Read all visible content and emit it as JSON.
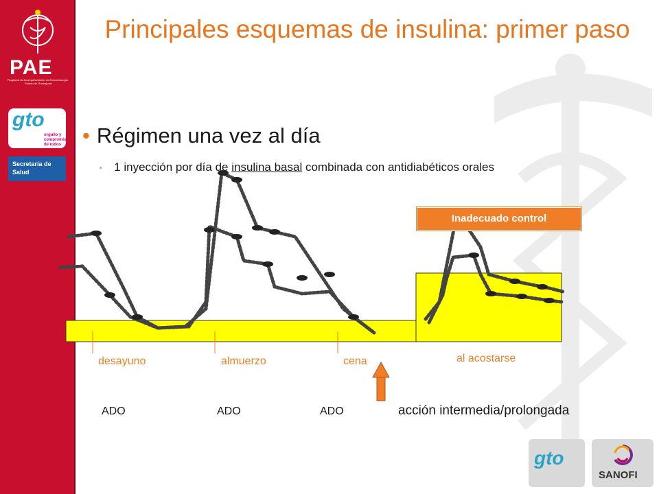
{
  "sidebar": {
    "pae_logo": "PAE",
    "pae_subtitle": "Programa de Acompañamiento en Endocrinología · Estado de Guanajuato",
    "gto_logo": "gto",
    "gto_tagline": "orgullo y compromiso de todos",
    "secretaria_label": "Secretaría de Salud",
    "primary_color": "#c8102e",
    "icon": "caduceus-icon"
  },
  "title": "Principales esquemas de insulina: primer paso",
  "bullet_main": "Régimen una vez al día",
  "bullet_sub": {
    "before": "1 inyección por día de ",
    "underlined": "insulina basal",
    "after": " combinada con antidiabéticos orales"
  },
  "diagram": {
    "callout": "Inadecuado control",
    "meal_labels": [
      "desayuno",
      "almuerzo",
      "cena",
      "al acostarse"
    ],
    "ado_labels": [
      "ADO",
      "ADO",
      "ADO"
    ],
    "arrow_label": "acción intermedia/prolongada",
    "basal_color": "#ffff00",
    "accent_color": "#f07e26"
  },
  "footer": {
    "gto_logo": "gto",
    "sanofi_logo": "SANOFI"
  }
}
